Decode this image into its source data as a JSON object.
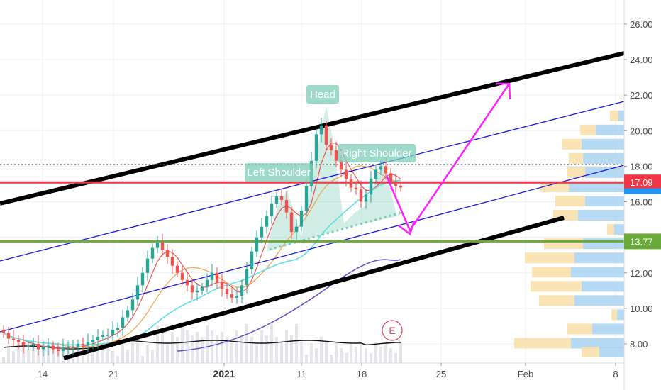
{
  "chart_data": {
    "type": "candlestick",
    "title": "",
    "xlabel": "",
    "ylabel": "",
    "ylim": [
      7.3,
      27.0
    ],
    "y_ticks": [
      8,
      10,
      12,
      14,
      16,
      18,
      20,
      22,
      24,
      26
    ],
    "y_tick_labels": [
      "8.00",
      "10.00",
      "12.00",
      "14.00",
      "16.00",
      "18.00",
      "20.00",
      "22.00",
      "24.00",
      "26.00"
    ],
    "x_ticks": [
      {
        "label": "14",
        "bold": false
      },
      {
        "label": "21",
        "bold": false
      },
      {
        "label": "2021",
        "bold": true
      },
      {
        "label": "11",
        "bold": false
      },
      {
        "label": "18",
        "bold": false
      },
      {
        "label": "25",
        "bold": false
      },
      {
        "label": "Feb",
        "bold": false
      },
      {
        "label": "8",
        "bold": false
      }
    ],
    "price_levels": [
      {
        "label": "17.09",
        "value": 17.09,
        "color": "#f23645"
      },
      {
        "label": "13.77",
        "value": 13.77,
        "color": "#6aaa3a"
      }
    ],
    "current_price_line": 18.1,
    "pattern_labels": [
      "Left Shoulder",
      "Head",
      "Right Shoulder"
    ],
    "event_marker": "E",
    "candles_close": [
      8.6,
      8.3,
      8.2,
      8.1,
      7.9,
      7.9,
      8.0,
      7.7,
      7.8,
      7.9,
      7.7,
      7.6,
      7.8,
      7.8,
      7.8,
      8.0,
      7.9,
      8.1,
      8.2,
      8.4,
      8.5,
      8.5,
      8.8,
      8.9,
      9.5,
      9.9,
      10.5,
      11.3,
      12.0,
      12.8,
      13.4,
      13.7,
      13.3,
      12.9,
      12.4,
      12.0,
      11.6,
      11.3,
      10.9,
      11.0,
      11.2,
      11.6,
      12.0,
      11.5,
      11.1,
      10.8,
      10.6,
      10.7,
      11.3,
      12.2,
      13.2,
      14.0,
      14.6,
      15.2,
      15.9,
      16.3,
      16.1,
      15.4,
      14.3,
      14.6,
      15.5,
      16.9,
      18.3,
      19.8,
      20.3,
      19.2,
      18.9,
      18.3,
      17.8,
      17.3,
      16.8,
      16.7,
      16.0,
      16.4,
      17.3,
      17.8,
      18.0,
      17.6,
      17.1,
      16.9,
      16.8
    ],
    "volume_profile": [
      {
        "price": 20.8,
        "buy": 12,
        "sell": 8
      },
      {
        "price": 20.0,
        "buy": 22,
        "sell": 40
      },
      {
        "price": 19.2,
        "buy": 28,
        "sell": 60
      },
      {
        "price": 18.4,
        "buy": 20,
        "sell": 58
      },
      {
        "price": 17.6,
        "buy": 25,
        "sell": 55
      },
      {
        "price": 16.8,
        "buy": 40,
        "sell": 78
      },
      {
        "price": 16.0,
        "buy": 42,
        "sell": 55
      },
      {
        "price": 15.2,
        "buy": 35,
        "sell": 65
      },
      {
        "price": 14.4,
        "buy": 10,
        "sell": 14
      },
      {
        "price": 13.6,
        "buy": 55,
        "sell": 58
      },
      {
        "price": 12.8,
        "buy": 70,
        "sell": 70
      },
      {
        "price": 12.0,
        "buy": 55,
        "sell": 75
      },
      {
        "price": 11.2,
        "buy": 72,
        "sell": 60
      },
      {
        "price": 10.4,
        "buy": 50,
        "sell": 70
      },
      {
        "price": 9.6,
        "buy": 8,
        "sell": 10
      },
      {
        "price": 8.8,
        "buy": 35,
        "sell": 45
      },
      {
        "price": 8.0,
        "buy": 80,
        "sell": 75
      },
      {
        "price": 7.5,
        "buy": 25,
        "sell": 35
      }
    ],
    "colors": {
      "up": "#26a69a",
      "down": "#ef5350",
      "channel_thick": "#000000",
      "channel_thin": "#1a1ad6",
      "resistance": "#f23645",
      "support": "#6aaa3a",
      "arrow": "#ff1fff",
      "ma_fast": "#ef5350",
      "ma_mid": "#f5a04a",
      "ma_slow": "#5ee0e8",
      "ma_long": "#5b4fc7",
      "pattern_fill": "#7ccdb7",
      "vp_buy": "#f9dfa8",
      "vp_sell": "#a9d2f2"
    }
  }
}
